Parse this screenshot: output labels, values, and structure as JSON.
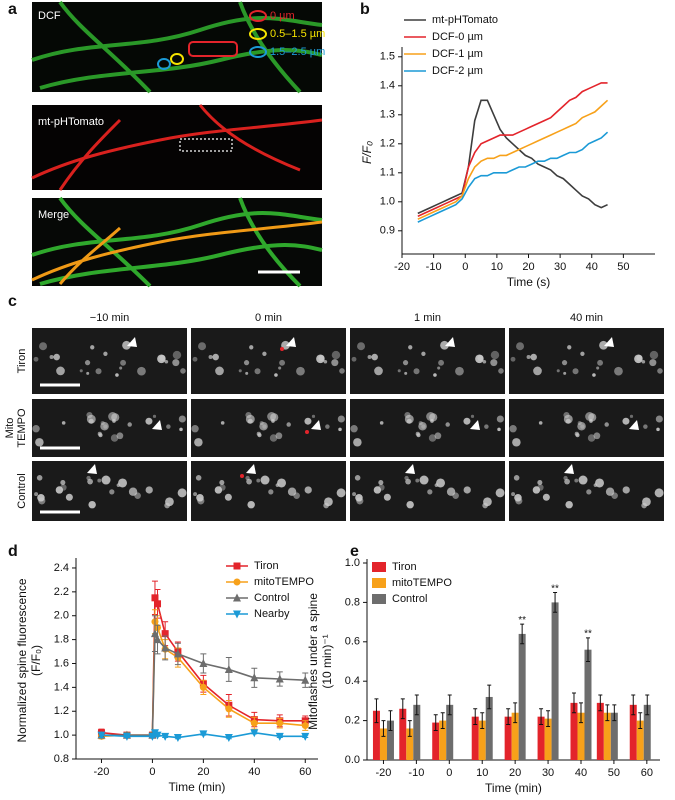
{
  "panel_labels": [
    "a",
    "b",
    "c",
    "d",
    "e"
  ],
  "images": {
    "a": {
      "labels": [
        "DCF",
        "mt-pHTomato",
        "Merge"
      ],
      "legend": [
        "0 µm",
        "0.5–1.5 µm",
        "1.5–2.5 µm"
      ]
    },
    "c": {
      "columns": [
        "−10 min",
        "0 min",
        "1 min",
        "40 min"
      ],
      "rows": [
        [
          "Tiron"
        ],
        [
          "Mito",
          "TEMPO"
        ],
        [
          "Control"
        ]
      ]
    }
  },
  "chart_data": [
    {
      "type": "line",
      "xlabel": "Time (s)",
      "ylabel": [
        "F/F₀"
      ],
      "legend": "upper left",
      "x": [
        -15,
        -13,
        -11,
        -9,
        -7,
        -5,
        -3,
        -1,
        1,
        3,
        5,
        7,
        9,
        11,
        13,
        15,
        17,
        19,
        21,
        23,
        25,
        27,
        29,
        31,
        33,
        35,
        37,
        39,
        41,
        43,
        45
      ],
      "xlim": [
        -20,
        60
      ],
      "xticks": [
        -20,
        -10,
        0,
        10,
        20,
        30,
        40,
        50
      ],
      "ylim": [
        0.82,
        1.52
      ],
      "yticks": [
        0.9,
        {
          "value": 1,
          "label": "1.0"
        },
        1.1,
        1.2,
        1.3,
        1.4,
        1.5
      ],
      "series": [
        {
          "name": "mt-pHTomato",
          "color": "#3d3d3d",
          "values": [
            0.96,
            0.97,
            0.98,
            0.99,
            1.0,
            1.01,
            1.02,
            1.03,
            1.12,
            1.28,
            1.35,
            1.35,
            1.3,
            1.25,
            1.22,
            1.2,
            1.18,
            1.16,
            1.15,
            1.13,
            1.12,
            1.11,
            1.09,
            1.08,
            1.06,
            1.04,
            1.02,
            1.01,
            0.99,
            0.98,
            0.99
          ]
        },
        {
          "name": "DCF-0 µm",
          "color": "#e3242b",
          "values": [
            0.95,
            0.96,
            0.97,
            0.98,
            0.99,
            1.0,
            1.01,
            1.02,
            1.12,
            1.17,
            1.2,
            1.21,
            1.22,
            1.23,
            1.23,
            1.23,
            1.24,
            1.25,
            1.26,
            1.27,
            1.28,
            1.29,
            1.31,
            1.33,
            1.35,
            1.36,
            1.38,
            1.39,
            1.4,
            1.41,
            1.41
          ]
        },
        {
          "name": "DCF-1 µm",
          "color": "#f7a11a",
          "values": [
            0.94,
            0.95,
            0.96,
            0.97,
            0.98,
            0.99,
            1.0,
            1.02,
            1.08,
            1.12,
            1.14,
            1.15,
            1.15,
            1.16,
            1.16,
            1.17,
            1.18,
            1.19,
            1.2,
            1.21,
            1.22,
            1.23,
            1.24,
            1.25,
            1.26,
            1.27,
            1.29,
            1.3,
            1.31,
            1.33,
            1.35
          ]
        },
        {
          "name": "DCF-2 µm",
          "color": "#1b9ad6",
          "values": [
            0.93,
            0.94,
            0.95,
            0.96,
            0.97,
            0.98,
            0.99,
            1.01,
            1.05,
            1.08,
            1.09,
            1.09,
            1.1,
            1.1,
            1.1,
            1.11,
            1.12,
            1.12,
            1.13,
            1.14,
            1.14,
            1.15,
            1.15,
            1.16,
            1.17,
            1.17,
            1.18,
            1.2,
            1.21,
            1.22,
            1.24
          ]
        }
      ]
    },
    {
      "type": "line",
      "xlabel": "Time (min)",
      "ylabel": [
        "Normalized spine fluorescence",
        "(F/F₀)"
      ],
      "legend": "upper right",
      "x": [
        -20,
        -10,
        0,
        1,
        2,
        5,
        10,
        20,
        30,
        40,
        50,
        60
      ],
      "xlim": [
        -30,
        65
      ],
      "xticks": [
        -20,
        0,
        20,
        40,
        60
      ],
      "ylim": [
        0.8,
        2.45
      ],
      "yticks": [
        0.8,
        {
          "value": 1,
          "label": "1.0"
        },
        1.2,
        1.4,
        1.6,
        1.8,
        {
          "value": 2,
          "label": "2.0"
        },
        2.2,
        2.4
      ],
      "series": [
        {
          "name": "Tiron",
          "color": "#e3242b",
          "marker": "square",
          "values": [
            1.02,
            1.0,
            1.0,
            2.15,
            2.1,
            1.85,
            1.7,
            1.43,
            1.25,
            1.13,
            1.12,
            1.12
          ],
          "errors": [
            0.03,
            0.02,
            0.02,
            0.14,
            0.12,
            0.1,
            0.08,
            0.07,
            0.09,
            0.06,
            0.05,
            0.04
          ]
        },
        {
          "name": "mitoTEMPO",
          "color": "#f7a11a",
          "marker": "circle",
          "values": [
            0.99,
            1.0,
            1.0,
            1.95,
            1.9,
            1.72,
            1.65,
            1.4,
            1.22,
            1.1,
            1.1,
            1.08
          ],
          "errors": [
            0.02,
            0.02,
            0.02,
            0.1,
            0.1,
            0.08,
            0.08,
            0.06,
            0.07,
            0.05,
            0.04,
            0.04
          ]
        },
        {
          "name": "Control",
          "color": "#6d6d6d",
          "marker": "triangle-up",
          "values": [
            1.0,
            1.0,
            1.0,
            1.85,
            1.8,
            1.73,
            1.68,
            1.6,
            1.55,
            1.48,
            1.47,
            1.46
          ],
          "errors": [
            0.02,
            0.02,
            0.02,
            0.15,
            0.12,
            0.1,
            0.09,
            0.08,
            0.1,
            0.08,
            0.06,
            0.06
          ]
        },
        {
          "name": "Nearby",
          "color": "#1b9ad6",
          "marker": "triangle-down",
          "values": [
            1.0,
            0.99,
            0.99,
            1.02,
            1.0,
            0.99,
            0.98,
            1.01,
            0.98,
            1.02,
            0.99,
            0.99
          ],
          "errors": [
            0.02,
            0.01,
            0.01,
            0.02,
            0.01,
            0.01,
            0.01,
            0.01,
            0.01,
            0.01,
            0.01,
            0.01
          ]
        }
      ]
    },
    {
      "type": "bar",
      "xlabel": "Time (min)",
      "ylabel": [
        "Mitoflashes under a spine",
        "(10 min)⁻¹"
      ],
      "legend": "upper left",
      "x": [
        -20,
        -12,
        -2,
        10,
        20,
        30,
        40,
        48,
        58
      ],
      "xlim": [
        -25,
        64
      ],
      "xticks": [
        -20,
        -10,
        0,
        10,
        20,
        30,
        40,
        50,
        60
      ],
      "ylim": [
        0,
        1
      ],
      "yticks": [
        {
          "value": 0,
          "label": "0.0"
        },
        0.2,
        0.4,
        0.6,
        0.8,
        {
          "value": 1,
          "label": "1.0"
        }
      ],
      "series": [
        {
          "name": "Tiron",
          "color": "#e3242b",
          "values": [
            0.25,
            0.26,
            0.19,
            0.22,
            0.22,
            0.22,
            0.29,
            0.29,
            0.28
          ],
          "errors": [
            0.06,
            0.05,
            0.04,
            0.04,
            0.04,
            0.04,
            0.05,
            0.04,
            0.05
          ]
        },
        {
          "name": "mitoTEMPO",
          "color": "#f7a11a",
          "values": [
            0.16,
            0.16,
            0.2,
            0.2,
            0.24,
            0.21,
            0.24,
            0.24,
            0.2
          ],
          "errors": [
            0.04,
            0.04,
            0.04,
            0.04,
            0.05,
            0.04,
            0.05,
            0.04,
            0.04
          ]
        },
        {
          "name": "Control",
          "color": "#6d6d6d",
          "values": [
            0.2,
            0.28,
            0.28,
            0.32,
            0.64,
            0.8,
            0.56,
            0.24,
            0.28
          ],
          "errors": [
            0.05,
            0.05,
            0.05,
            0.06,
            0.05,
            0.05,
            0.06,
            0.04,
            0.05
          ]
        }
      ],
      "annotations": [
        {
          "text": "**",
          "x": 20,
          "y": 0.71
        },
        {
          "text": "**",
          "x": 30,
          "y": 0.87
        },
        {
          "text": "**",
          "x": 40,
          "y": 0.64
        }
      ]
    }
  ]
}
